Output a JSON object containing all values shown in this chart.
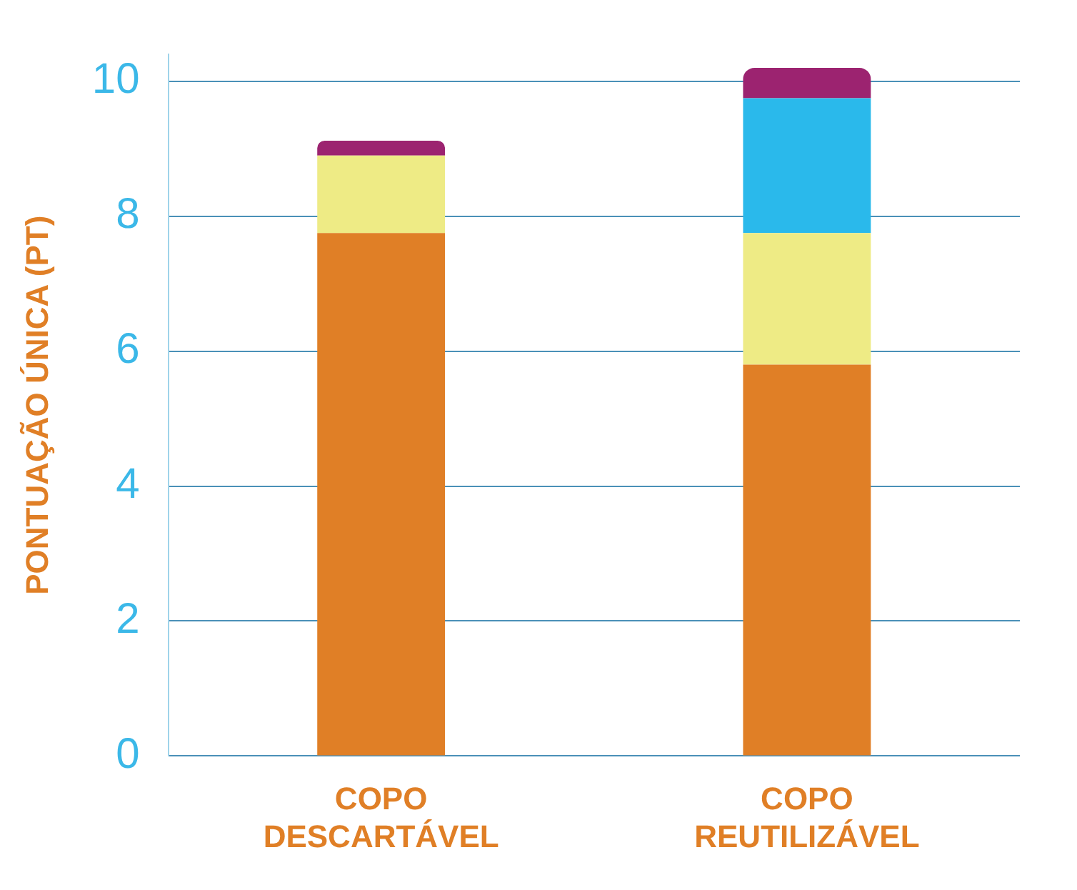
{
  "chart_data": {
    "type": "bar",
    "stacked": true,
    "ylabel": "PONTUAÇÃO ÚNICA (PT)",
    "categories": [
      "COPO DESCARTÁVEL",
      "COPO REUTILIZÁVEL"
    ],
    "series": [
      {
        "color": "#e07f26",
        "values": [
          7.75,
          5.8
        ]
      },
      {
        "color": "#eeeb85",
        "values": [
          1.15,
          1.95
        ]
      },
      {
        "color": "#2ab9eb",
        "values": [
          0,
          2.0
        ]
      },
      {
        "color": "#9c2370",
        "values": [
          0.22,
          0.45
        ]
      }
    ],
    "ylim": [
      0,
      10.4
    ],
    "yticks": [
      0,
      2,
      4,
      6,
      8,
      10
    ],
    "grid": "y",
    "legend": false
  }
}
